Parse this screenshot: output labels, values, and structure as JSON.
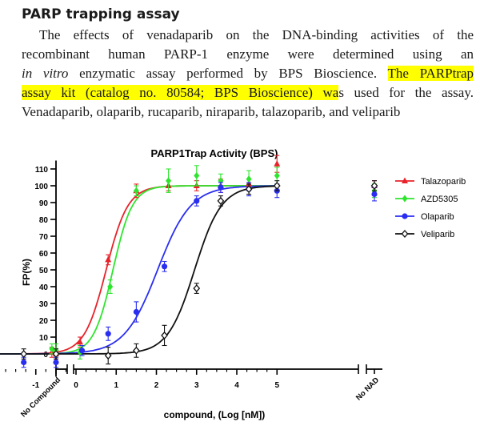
{
  "section": {
    "heading": "PARP trapping assay",
    "line1_a": "The effects of venadaparib on the DNA-binding activities of the",
    "line2": "recombinant human PARP-1 enzyme were determined using an",
    "line3_italic": "in vitro",
    "line3_rest": " enzymatic assay performed by BPS Bioscience. ",
    "line3_highlight": "The PARPtrap",
    "line4_highlight": "assay kit (catalog no. 80584; BPS Bioscience) wa",
    "line4_rest": "s used for the assay.",
    "line5": "Venadaparib, olaparib, rucaparib, niraparib, talazoparib, and veliparib",
    "highlight_color": "#ffff00"
  },
  "chart_data": {
    "type": "scatter",
    "title": "PARP1Trap Activity (BPS)",
    "xlabel": "compound, (Log [nM])",
    "ylabel": "FP(%)",
    "xlim": [
      -2.5,
      5.25
    ],
    "ylim": [
      -5,
      115
    ],
    "x_ticks": [
      "-2",
      "-1",
      "0",
      "1",
      "2",
      "3",
      "4",
      "5"
    ],
    "y_ticks": [
      "0",
      "10",
      "20",
      "30",
      "40",
      "50",
      "60",
      "70",
      "80",
      "90",
      "100",
      "110"
    ],
    "x_extra_labels": [
      "No Compound",
      "No NAD"
    ],
    "curve": "four-parameter logistic fit (bottom 0, top 100)",
    "series": [
      {
        "name": "Talazoparib",
        "color": "#e8222a",
        "marker": "triangle",
        "ec50_log": 0.75,
        "hill": 1.6,
        "points": [
          {
            "x": "No Compound",
            "y": 0,
            "err": 3
          },
          {
            "x": -0.6,
            "y": 1,
            "err": 3
          },
          {
            "x": 0.1,
            "y": 7,
            "err": 3
          },
          {
            "x": 0.8,
            "y": 56,
            "err": 3
          },
          {
            "x": 1.5,
            "y": 97,
            "err": 4
          },
          {
            "x": 2.3,
            "y": 100,
            "err": 3
          },
          {
            "x": 3.0,
            "y": 100,
            "err": 3
          },
          {
            "x": 3.6,
            "y": 100,
            "err": 4
          },
          {
            "x": 4.3,
            "y": 101,
            "err": 3
          },
          {
            "x": 5.0,
            "y": 113,
            "err": 5
          },
          {
            "x": "No NAD",
            "y": 100,
            "err": 3
          }
        ]
      },
      {
        "name": "AZD5305",
        "color": "#2ee52e",
        "marker": "diamond",
        "ec50_log": 0.92,
        "hill": 1.8,
        "points": [
          {
            "x": "No Compound",
            "y": 2,
            "err": 4
          },
          {
            "x": -0.6,
            "y": 3,
            "err": 3
          },
          {
            "x": 0.1,
            "y": 1,
            "err": 4
          },
          {
            "x": 0.85,
            "y": 40,
            "err": 4
          },
          {
            "x": 1.5,
            "y": 97,
            "err": 3
          },
          {
            "x": 2.3,
            "y": 103,
            "err": 7
          },
          {
            "x": 3.0,
            "y": 106,
            "err": 6
          },
          {
            "x": 3.6,
            "y": 103,
            "err": 4
          },
          {
            "x": 4.3,
            "y": 104,
            "err": 5
          },
          {
            "x": 5.0,
            "y": 106,
            "err": 5
          },
          {
            "x": "No NAD",
            "y": 97,
            "err": 4
          }
        ]
      },
      {
        "name": "Olaparib",
        "color": "#2a2ef0",
        "marker": "circle",
        "ec50_log": 2.03,
        "hill": 1.05,
        "points": [
          {
            "x": "No Compound",
            "y": -5,
            "err": 3
          },
          {
            "x": -1.3,
            "y": -5,
            "err": 3
          },
          {
            "x": 0.15,
            "y": 2,
            "err": 3
          },
          {
            "x": 0.8,
            "y": 12,
            "err": 4
          },
          {
            "x": 1.5,
            "y": 25,
            "err": 6
          },
          {
            "x": 2.2,
            "y": 52,
            "err": 3
          },
          {
            "x": 3.0,
            "y": 91,
            "err": 3
          },
          {
            "x": 3.6,
            "y": 99,
            "err": 3
          },
          {
            "x": 4.3,
            "y": 98,
            "err": 4
          },
          {
            "x": 5.0,
            "y": 97,
            "err": 4
          },
          {
            "x": "No NAD",
            "y": 95,
            "err": 4
          }
        ]
      },
      {
        "name": "Veliparib",
        "color": "#111111",
        "marker": "open-diamond",
        "ec50_log": 2.95,
        "hill": 1.3,
        "points": [
          {
            "x": "No Compound",
            "y": 0,
            "err": 3
          },
          {
            "x": -1.3,
            "y": 0,
            "err": 3
          },
          {
            "x": 0.8,
            "y": -1,
            "err": 5
          },
          {
            "x": 1.5,
            "y": 2,
            "err": 4
          },
          {
            "x": 2.2,
            "y": 11,
            "err": 6
          },
          {
            "x": 3.0,
            "y": 39,
            "err": 3
          },
          {
            "x": 3.6,
            "y": 91,
            "err": 3
          },
          {
            "x": 4.3,
            "y": 98,
            "err": 3
          },
          {
            "x": 5.0,
            "y": 100,
            "err": 3
          },
          {
            "x": "No NAD",
            "y": 100,
            "err": 3
          }
        ]
      }
    ],
    "legend_position": "right"
  }
}
